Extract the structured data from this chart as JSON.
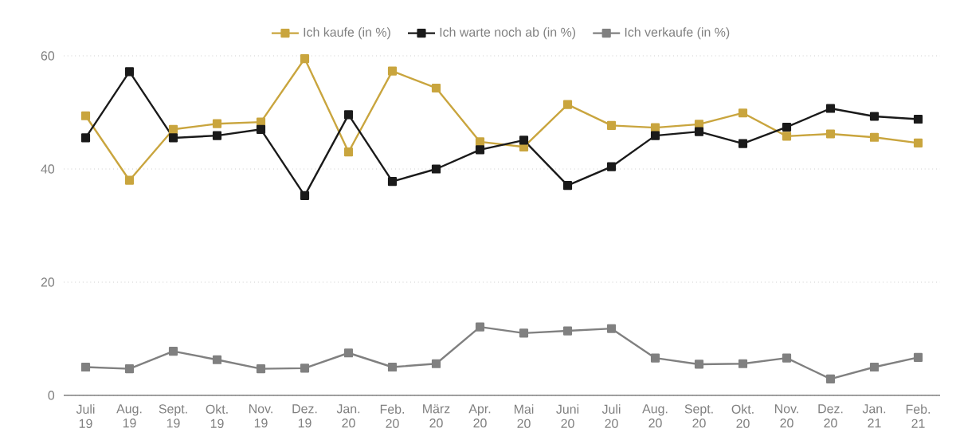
{
  "chart_data": {
    "type": "line",
    "categories": [
      "Juli 19",
      "Aug. 19",
      "Sept. 19",
      "Okt. 19",
      "Nov. 19",
      "Dez. 19",
      "Jan. 20",
      "Feb. 20",
      "März 20",
      "Apr. 20",
      "Mai 20",
      "Juni 20",
      "Juli 20",
      "Aug. 20",
      "Sept. 20",
      "Okt. 20",
      "Nov. 20",
      "Dez. 20",
      "Jan. 21",
      "Feb. 21"
    ],
    "series": [
      {
        "name": "Ich kaufe (in %)",
        "color": "#c9a53e",
        "values": [
          49.4,
          38.0,
          47.0,
          48.0,
          48.3,
          59.5,
          43.0,
          57.3,
          54.3,
          44.8,
          43.9,
          51.4,
          47.7,
          47.3,
          47.9,
          49.9,
          45.8,
          46.2,
          45.6,
          44.6
        ]
      },
      {
        "name": "Ich warte noch ab (in %)",
        "color": "#1a1a1a",
        "values": [
          45.5,
          57.2,
          45.5,
          45.9,
          47.0,
          35.3,
          49.6,
          37.8,
          40.0,
          43.4,
          45.1,
          37.1,
          40.4,
          45.9,
          46.6,
          44.5,
          47.4,
          50.7,
          49.3,
          48.8
        ]
      },
      {
        "name": "Ich verkaufe (in %)",
        "color": "#808080",
        "values": [
          5.0,
          4.7,
          7.8,
          6.3,
          4.7,
          4.8,
          7.5,
          5.0,
          5.6,
          12.1,
          11.0,
          11.4,
          11.8,
          6.6,
          5.5,
          5.6,
          6.6,
          2.9,
          5.0,
          6.7
        ]
      }
    ],
    "ylim": [
      0,
      60
    ],
    "yticks": [
      0,
      20,
      40,
      60
    ],
    "grid": "y",
    "legend": "top",
    "marker": "square",
    "line_style": "solid"
  }
}
